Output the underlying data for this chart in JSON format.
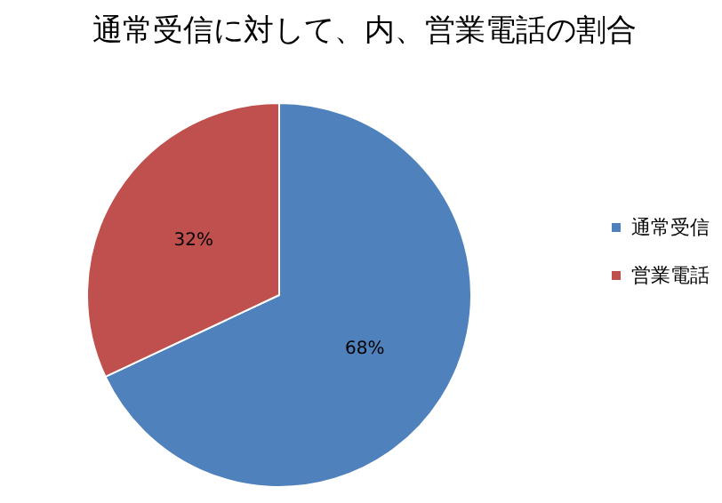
{
  "chart_data": {
    "type": "pie",
    "title": "通常受信に対して、内、営業電話の割合",
    "categories": [
      "通常受信",
      "営業電話"
    ],
    "values": [
      68,
      32
    ],
    "colors": [
      "#4f81bd",
      "#c0504d"
    ],
    "value_labels": [
      "68%",
      "32%"
    ],
    "legend": "right"
  }
}
